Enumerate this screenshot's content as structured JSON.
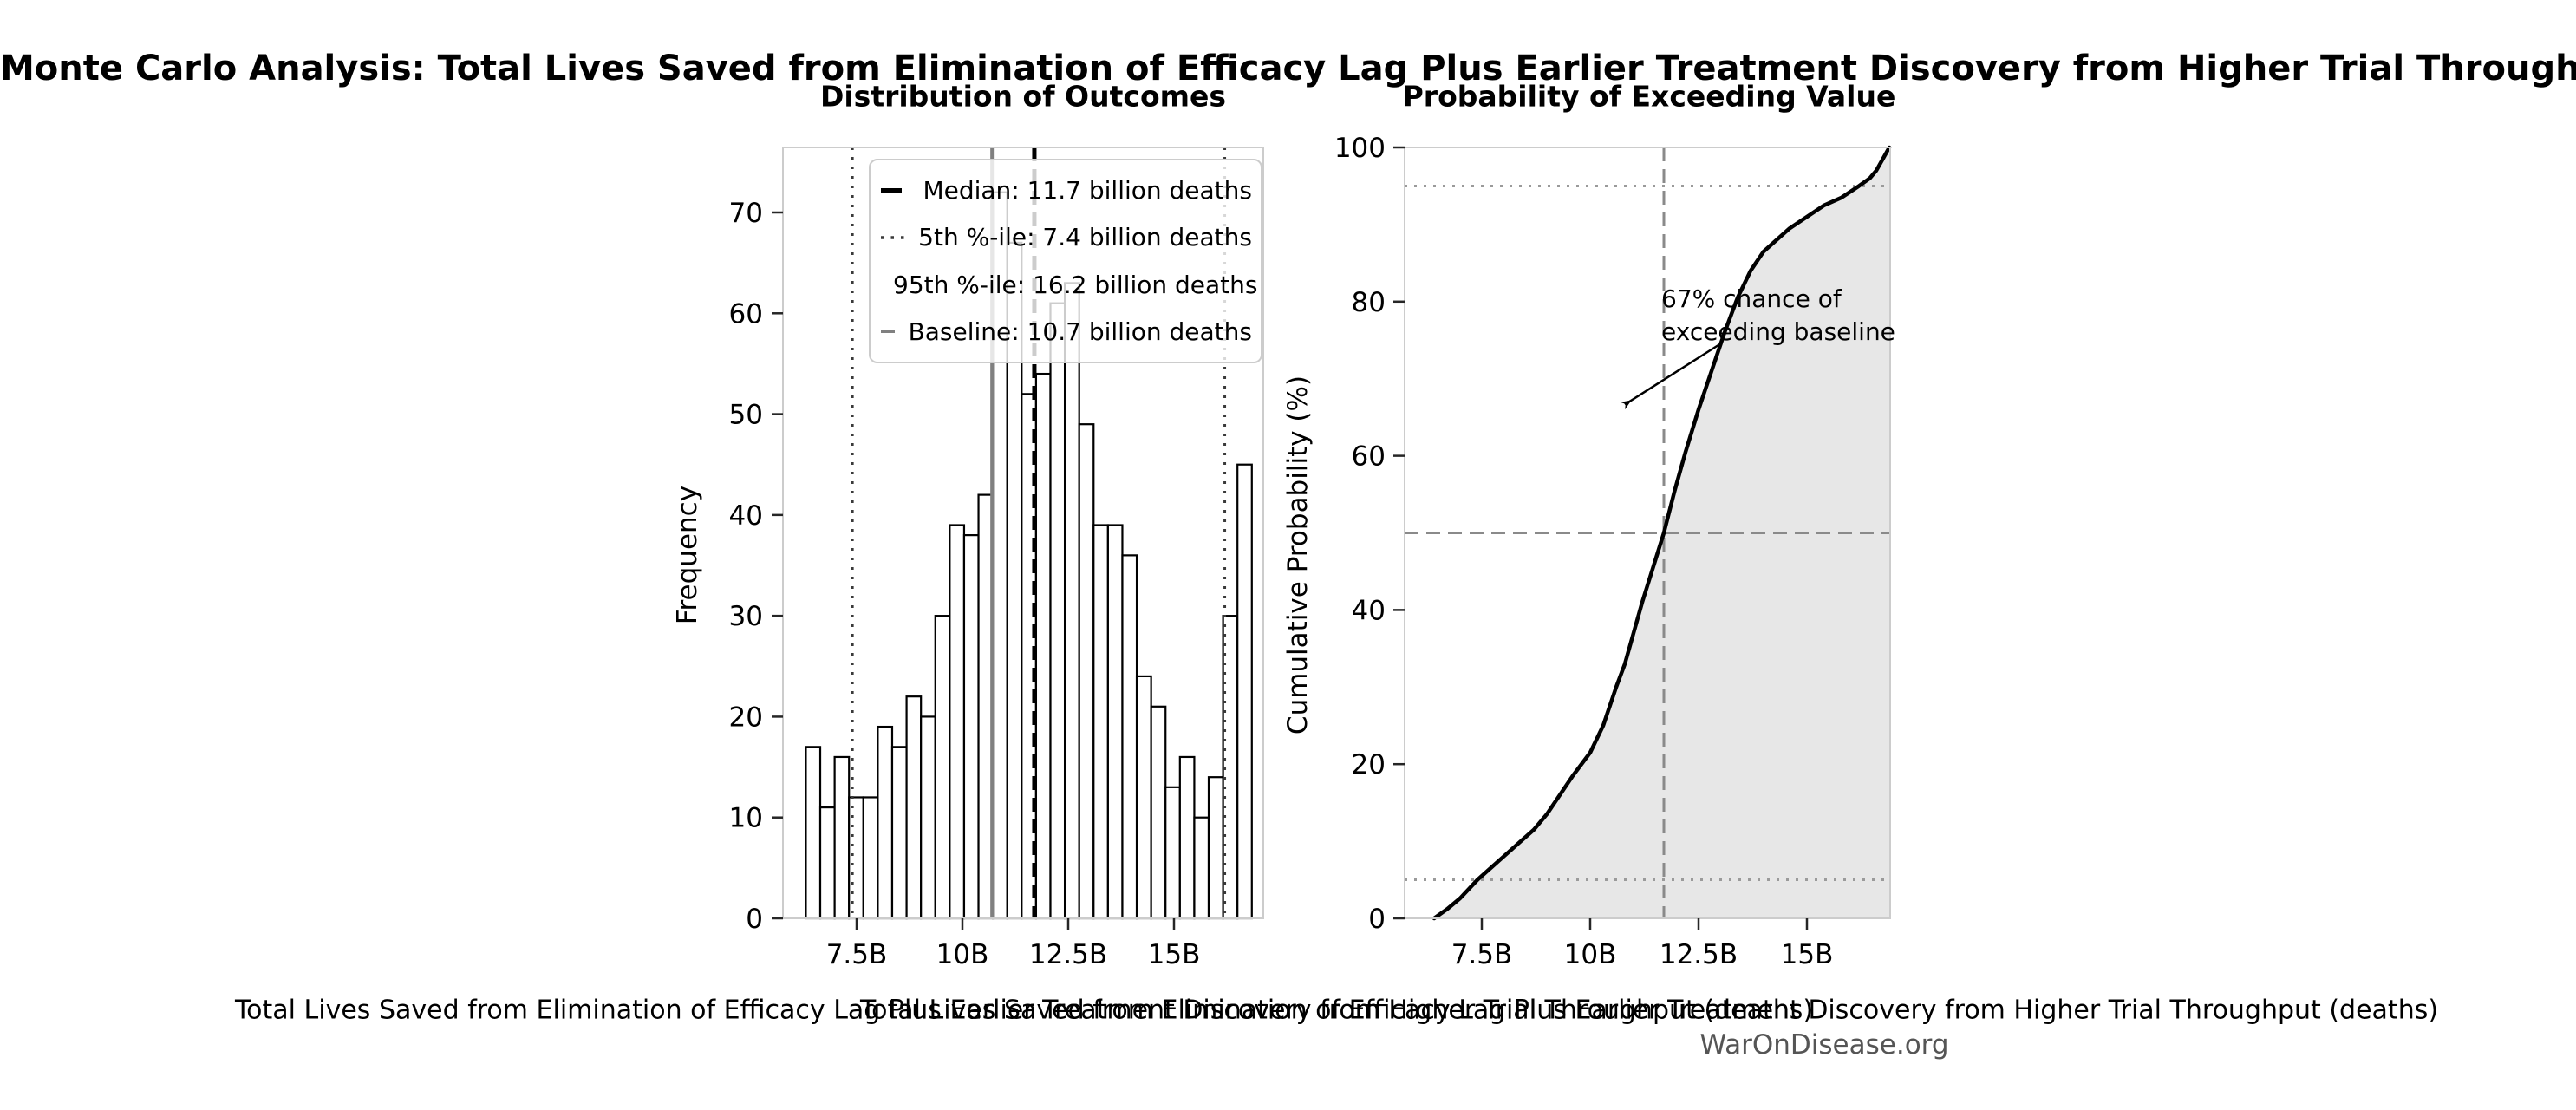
{
  "figure": {
    "title": "Monte Carlo Analysis: Total Lives Saved from Elimination of Efficacy Lag Plus Earlier Treatment Discovery from Higher Trial Throughput",
    "footer": "WarOnDisease.org"
  },
  "colors": {
    "background": "#ffffff",
    "text": "#000000",
    "spine": "#cccccc",
    "tick_mark": "#262626",
    "bar_fill": "#ffffff",
    "bar_edge": "#000000",
    "median_line": "#000000",
    "percentile_line": "#3a3a3a",
    "baseline_line": "#808080",
    "cdf_line": "#000000",
    "cdf_fill": "#e7e7e7",
    "ref_dashed_gray": "#8a8a8a",
    "ref_dotted_gray": "#9a9a9a",
    "footer_text": "#555555"
  },
  "stats": {
    "median_billions": 11.7,
    "p5_billions": 7.4,
    "p95_billions": 16.2,
    "baseline_billions": 10.7,
    "prob_exceed_baseline": "67%"
  },
  "chart_data": [
    {
      "type": "bar",
      "title": "Distribution of Outcomes",
      "xlabel": "Total Lives Saved from Elimination of Efficacy Lag Plus Earlier Treatment Discovery from Higher Trial Throughput (deaths)",
      "ylabel": "Frequency",
      "bin_start_billions": 6.3,
      "bin_width_billions": 0.34,
      "frequencies": [
        17,
        11,
        16,
        12,
        12,
        19,
        17,
        22,
        20,
        30,
        39,
        38,
        42,
        72,
        67,
        52,
        54,
        61,
        63,
        49,
        39,
        39,
        36,
        24,
        21,
        13,
        16,
        10,
        14,
        30,
        45
      ],
      "x_ticks": [
        {
          "value": 7.5,
          "label": "7.5B"
        },
        {
          "value": 10,
          "label": "10B"
        },
        {
          "value": 12.5,
          "label": "12.5B"
        },
        {
          "value": 15,
          "label": "15B"
        }
      ],
      "y_ticks": [
        0,
        10,
        20,
        30,
        40,
        50,
        60,
        70
      ],
      "xlim_billions": [
        5.76,
        17.11
      ],
      "ylim": [
        0,
        76.4
      ],
      "grid": false,
      "reference_lines": [
        {
          "name": "median",
          "value_billions": 11.7,
          "style": "dashed",
          "color": "#000000",
          "width": 5
        },
        {
          "name": "p5",
          "value_billions": 7.4,
          "style": "dotted",
          "color": "#3a3a3a",
          "width": 3
        },
        {
          "name": "p95",
          "value_billions": 16.2,
          "style": "dotted",
          "color": "#3a3a3a",
          "width": 3
        },
        {
          "name": "baseline",
          "value_billions": 10.7,
          "style": "solid",
          "color": "#808080",
          "width": 4
        }
      ],
      "legend": {
        "position": "upper right",
        "items": [
          {
            "label": "Median: 11.7 billion deaths",
            "color": "#000000",
            "width": 6,
            "dash": "24 13"
          },
          {
            "label": "5th %-ile: 7.4 billion deaths",
            "color": "#3a3a3a",
            "width": 3.5,
            "dash": "3.5 8"
          },
          {
            "label": "95th %-ile: 16.2 billion deaths",
            "color": "#3a3a3a",
            "width": 3.5,
            "dash": "3.5 8"
          },
          {
            "label": "Baseline: 10.7 billion deaths",
            "color": "#808080",
            "width": 4,
            "dash": ""
          }
        ]
      }
    },
    {
      "type": "line",
      "title": "Probability of Exceeding Value",
      "xlabel": "Total Lives Saved from Elimination of Efficacy Lag Plus Earlier Treatment Discovery from Higher Trial Throughput (deaths)",
      "ylabel": "Cumulative Probability (%)",
      "x_ticks": [
        {
          "value": 7.5,
          "label": "7.5B"
        },
        {
          "value": 10,
          "label": "10B"
        },
        {
          "value": 12.5,
          "label": "12.5B"
        },
        {
          "value": 15,
          "label": "15B"
        }
      ],
      "y_ticks": [
        0,
        20,
        40,
        60,
        80,
        100
      ],
      "xlim_billions": [
        5.72,
        17.12
      ],
      "ylim": [
        0,
        100
      ],
      "area_fill": true,
      "points": [
        [
          6.4,
          0
        ],
        [
          6.7,
          1.2
        ],
        [
          7.0,
          2.6
        ],
        [
          7.4,
          5
        ],
        [
          7.7,
          6.5
        ],
        [
          8.0,
          8
        ],
        [
          8.4,
          10
        ],
        [
          8.7,
          11.5
        ],
        [
          9.0,
          13.5
        ],
        [
          9.3,
          16
        ],
        [
          9.6,
          18.5
        ],
        [
          10.0,
          21.5
        ],
        [
          10.3,
          25
        ],
        [
          10.6,
          30
        ],
        [
          10.8,
          33
        ],
        [
          11.0,
          37
        ],
        [
          11.2,
          41
        ],
        [
          11.45,
          45.5
        ],
        [
          11.7,
          50
        ],
        [
          11.95,
          55.5
        ],
        [
          12.2,
          60.5
        ],
        [
          12.5,
          66
        ],
        [
          12.8,
          71
        ],
        [
          13.1,
          76
        ],
        [
          13.4,
          80.5
        ],
        [
          13.7,
          84
        ],
        [
          14.0,
          86.5
        ],
        [
          14.3,
          88
        ],
        [
          14.6,
          89.5
        ],
        [
          15.0,
          91
        ],
        [
          15.4,
          92.5
        ],
        [
          15.8,
          93.5
        ],
        [
          16.2,
          95
        ],
        [
          16.45,
          96
        ],
        [
          16.6,
          97
        ],
        [
          16.75,
          98.5
        ],
        [
          16.85,
          99.5
        ],
        [
          16.9,
          100
        ]
      ],
      "reference_lines": [
        {
          "name": "median-vline",
          "axis": "x",
          "value": 11.7,
          "style": "dashed",
          "color": "#8a8a8a",
          "width": 3
        },
        {
          "name": "p50-hline",
          "axis": "y",
          "value": 50,
          "style": "dashed",
          "color": "#8a8a8a",
          "width": 3
        },
        {
          "name": "p5-hline",
          "axis": "y",
          "value": 5,
          "style": "dotted",
          "color": "#9a9a9a",
          "width": 3
        },
        {
          "name": "p95-hline",
          "axis": "y",
          "value": 95,
          "style": "dotted",
          "color": "#9a9a9a",
          "width": 3
        }
      ],
      "annotation": {
        "text": "67% chance of\nexceeding baseline",
        "arrow_tip": {
          "x_billions": 10.7,
          "y_percent": 67
        }
      }
    }
  ]
}
